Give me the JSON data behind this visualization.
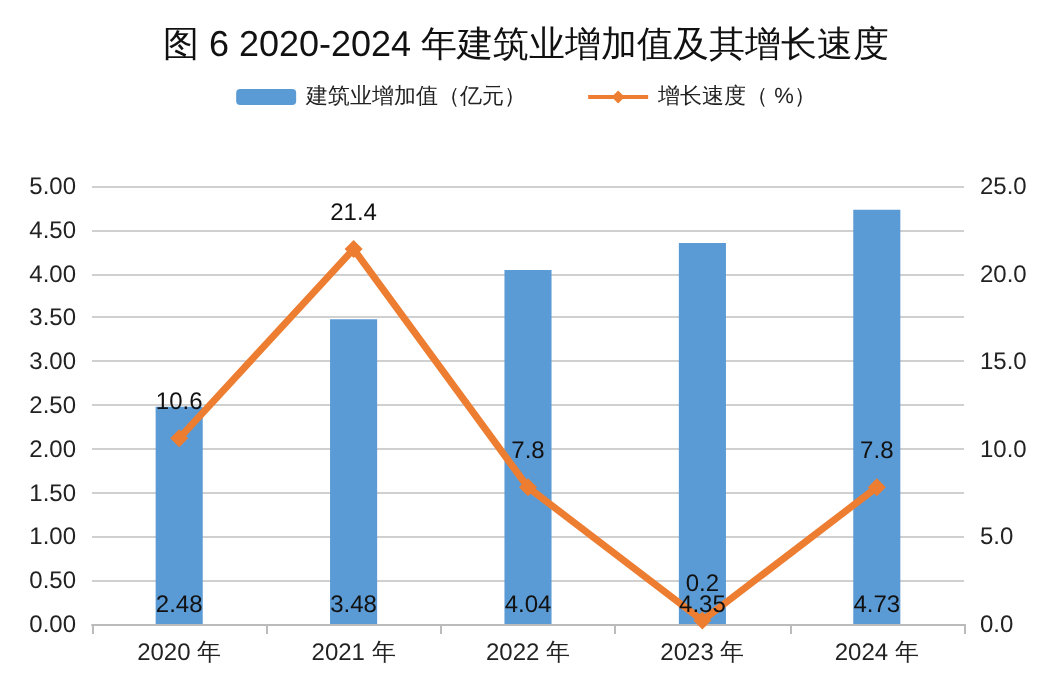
{
  "chart_data": {
    "type": "bar",
    "title": "图 6 2020-2024 年建筑业增加值及其增长速度",
    "categories": [
      "2020 年",
      "2021 年",
      "2022 年",
      "2023 年",
      "2024 年"
    ],
    "series": [
      {
        "name": "建筑业增加值（亿元）",
        "color": "#5b9bd5",
        "values": [
          2.48,
          3.48,
          4.04,
          4.35,
          4.73
        ]
      },
      {
        "name": "增长速度（ %）",
        "type": "line",
        "axis": "y2",
        "color": "#ed7d31",
        "values": [
          10.6,
          21.4,
          7.8,
          0.2,
          7.8
        ],
        "marker": "diamond"
      }
    ],
    "ylim": [
      0,
      5
    ],
    "yticks": [
      {
        "value": 0,
        "label": "0.00"
      },
      {
        "value": 0.5,
        "label": "0.50"
      },
      {
        "value": 1,
        "label": "1.00"
      },
      {
        "value": 1.5,
        "label": "1.50"
      },
      {
        "value": 2,
        "label": "2.00"
      },
      {
        "value": 2.5,
        "label": "2.50"
      },
      {
        "value": 3,
        "label": "3.00"
      },
      {
        "value": 3.5,
        "label": "3.50"
      },
      {
        "value": 4,
        "label": "4.00"
      },
      {
        "value": 4.5,
        "label": "4.50"
      },
      {
        "value": 5,
        "label": "5.00"
      }
    ],
    "y2lim": [
      0,
      25
    ],
    "y2ticks": [
      {
        "value": 0,
        "label": "0.0"
      },
      {
        "value": 5,
        "label": "5.0"
      },
      {
        "value": 10,
        "label": "10.0"
      },
      {
        "value": 15,
        "label": "15.0"
      },
      {
        "value": 20,
        "label": "20.0"
      },
      {
        "value": 25,
        "label": "25.0"
      }
    ],
    "grid": "y",
    "legend": "top",
    "data_labels": true
  }
}
